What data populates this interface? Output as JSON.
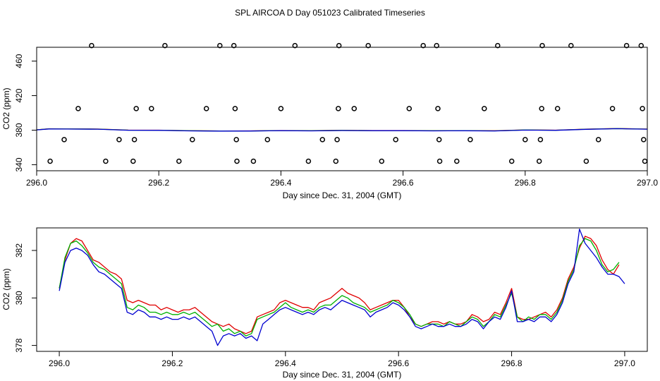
{
  "figure_title": "SPL AIRCOA D  Day 051023  Calibrated Timeseries",
  "chart_data": [
    {
      "type": "line",
      "xlabel": "Day since Dec. 31, 2004 (GMT)",
      "ylabel": "CO2 (ppm)",
      "xlim": [
        296.0,
        297.0
      ],
      "ylim": [
        333,
        476
      ],
      "xticks": [
        "296.0",
        "296.2",
        "296.4",
        "296.6",
        "296.8",
        "297.0"
      ],
      "yticks": [
        "340",
        "380",
        "420",
        "460"
      ],
      "grid": false,
      "points": [
        {
          "name": "calibration-points",
          "marker": "circle",
          "color": "#000000",
          "x": [
            296.022,
            296.045,
            296.068,
            296.09,
            296.113,
            296.135,
            296.158,
            296.16,
            296.163,
            296.188,
            296.21,
            296.233,
            296.255,
            296.278,
            296.3,
            296.323,
            296.325,
            296.327,
            296.328,
            296.355,
            296.378,
            296.4,
            296.423,
            296.445,
            296.468,
            296.49,
            296.492,
            296.494,
            296.495,
            296.52,
            296.543,
            296.565,
            296.588,
            296.61,
            296.633,
            296.655,
            296.657,
            296.659,
            296.66,
            296.688,
            296.71,
            296.733,
            296.755,
            296.778,
            296.8,
            296.823,
            296.825,
            296.827,
            296.828,
            296.853,
            296.875,
            296.9,
            296.92,
            296.943,
            296.966,
            296.99,
            296.992,
            296.994,
            296.996
          ],
          "y": [
            344,
            369,
            405,
            478,
            344,
            369,
            344,
            369,
            405,
            405,
            478,
            344,
            369,
            405,
            478,
            478,
            405,
            369,
            344,
            344,
            369,
            405,
            478,
            344,
            369,
            344,
            369,
            405,
            478,
            405,
            478,
            344,
            369,
            405,
            478,
            478,
            405,
            369,
            344,
            344,
            369,
            405,
            478,
            344,
            369,
            344,
            369,
            405,
            478,
            405,
            478,
            344,
            369,
            405,
            478,
            478,
            405,
            369,
            344
          ]
        }
      ],
      "series": [
        {
          "name": "red",
          "color": "#e00000",
          "x": [
            296.0,
            296.02,
            296.05,
            296.1,
            296.15,
            296.2,
            296.25,
            296.3,
            296.35,
            296.4,
            296.45,
            296.5,
            296.55,
            296.6,
            296.65,
            296.7,
            296.75,
            296.8,
            296.85,
            296.9,
            296.95,
            297.0
          ],
          "y": [
            380.4,
            381.6,
            381.5,
            381.3,
            380.1,
            380.0,
            379.4,
            379.1,
            379.2,
            379.6,
            379.4,
            379.8,
            379.6,
            379.6,
            379.4,
            379.5,
            379.3,
            380.3,
            380.0,
            381.2,
            381.9,
            381.3
          ]
        },
        {
          "name": "green",
          "color": "#00b000",
          "x": [
            296.0,
            296.02,
            296.05,
            296.1,
            296.15,
            296.2,
            296.25,
            296.3,
            296.35,
            296.4,
            296.45,
            296.5,
            296.55,
            296.6,
            296.65,
            296.7,
            296.75,
            296.8,
            296.85,
            296.9,
            296.95,
            297.0
          ],
          "y": [
            380.4,
            381.5,
            381.4,
            381.2,
            380.0,
            379.9,
            379.3,
            379.0,
            379.1,
            379.5,
            379.3,
            379.7,
            379.5,
            379.5,
            379.3,
            379.4,
            379.2,
            380.2,
            379.9,
            381.1,
            381.8,
            381.2
          ]
        },
        {
          "name": "blue",
          "color": "#0000d0",
          "x": [
            296.0,
            296.02,
            296.05,
            296.1,
            296.15,
            296.2,
            296.25,
            296.3,
            296.35,
            296.4,
            296.45,
            296.5,
            296.55,
            296.6,
            296.65,
            296.7,
            296.75,
            296.8,
            296.85,
            296.9,
            296.95,
            297.0
          ],
          "y": [
            380.3,
            381.4,
            381.3,
            381.1,
            379.9,
            379.8,
            379.2,
            378.9,
            379.0,
            379.4,
            379.2,
            379.6,
            379.4,
            379.4,
            379.2,
            379.3,
            379.1,
            380.1,
            379.8,
            381.0,
            381.7,
            381.1
          ]
        }
      ]
    },
    {
      "type": "line",
      "xlabel": "Day since Dec. 31, 2004 (GMT)",
      "ylabel": "CO2 (ppm)",
      "xlim": [
        295.96,
        297.04
      ],
      "ylim": [
        377.75,
        382.95
      ],
      "xticks": [
        "296.0",
        "296.2",
        "296.4",
        "296.6",
        "296.8",
        "297.0"
      ],
      "yticks": [
        "378",
        "380",
        "382"
      ],
      "grid": false,
      "series": [
        {
          "name": "red",
          "color": "#e00000",
          "x": [
            296.0,
            296.01,
            296.02,
            296.03,
            296.04,
            296.05,
            296.06,
            296.07,
            296.08,
            296.09,
            296.1,
            296.11,
            296.12,
            296.13,
            296.14,
            296.15,
            296.16,
            296.17,
            296.18,
            296.19,
            296.2,
            296.21,
            296.22,
            296.23,
            296.24,
            296.25,
            296.26,
            296.27,
            296.28,
            296.29,
            296.3,
            296.31,
            296.32,
            296.33,
            296.34,
            296.35,
            296.36,
            296.37,
            296.38,
            296.39,
            296.4,
            296.41,
            296.42,
            296.43,
            296.44,
            296.45,
            296.46,
            296.47,
            296.48,
            296.49,
            296.5,
            296.51,
            296.52,
            296.53,
            296.54,
            296.55,
            296.56,
            296.57,
            296.58,
            296.59,
            296.6,
            296.61,
            296.62,
            296.63,
            296.64,
            296.65,
            296.66,
            296.67,
            296.68,
            296.69,
            296.7,
            296.71,
            296.72,
            296.73,
            296.74,
            296.75,
            296.76,
            296.77,
            296.78,
            296.79,
            296.8,
            296.81,
            296.82,
            296.83,
            296.84,
            296.85,
            296.86,
            296.87,
            296.88,
            296.89,
            296.9,
            296.91,
            296.92,
            296.93,
            296.94,
            296.95,
            296.96,
            296.97,
            296.98,
            296.99
          ],
          "y": [
            380.4,
            381.6,
            382.3,
            382.5,
            382.4,
            382.0,
            381.6,
            381.5,
            381.3,
            381.1,
            381.0,
            380.8,
            379.9,
            379.8,
            379.9,
            379.8,
            379.7,
            379.7,
            379.5,
            379.6,
            379.5,
            379.4,
            379.5,
            379.5,
            379.6,
            379.4,
            379.2,
            379.0,
            378.9,
            378.8,
            378.9,
            378.7,
            378.6,
            378.5,
            378.6,
            379.2,
            379.3,
            379.4,
            379.5,
            379.8,
            379.9,
            379.8,
            379.7,
            379.6,
            379.6,
            379.5,
            379.8,
            379.9,
            380.0,
            380.2,
            380.4,
            380.2,
            380.1,
            380.0,
            379.8,
            379.5,
            379.6,
            379.7,
            379.8,
            379.9,
            379.9,
            379.6,
            379.2,
            378.9,
            378.8,
            378.9,
            379.0,
            379.0,
            378.9,
            379.0,
            378.9,
            378.9,
            379.0,
            379.3,
            379.2,
            379.0,
            379.1,
            379.4,
            379.3,
            379.8,
            380.4,
            379.2,
            379.1,
            379.1,
            379.2,
            379.3,
            379.4,
            379.2,
            379.5,
            380.0,
            380.8,
            381.3,
            382.1,
            382.6,
            382.5,
            382.2,
            381.6,
            381.2,
            381.0,
            381.4
          ]
        },
        {
          "name": "green",
          "color": "#00b000",
          "x": [
            296.0,
            296.01,
            296.02,
            296.03,
            296.04,
            296.05,
            296.06,
            296.07,
            296.08,
            296.09,
            296.1,
            296.11,
            296.12,
            296.13,
            296.14,
            296.15,
            296.16,
            296.17,
            296.18,
            296.19,
            296.2,
            296.21,
            296.22,
            296.23,
            296.24,
            296.25,
            296.26,
            296.27,
            296.28,
            296.29,
            296.3,
            296.31,
            296.32,
            296.33,
            296.34,
            296.35,
            296.36,
            296.37,
            296.38,
            296.39,
            296.4,
            296.41,
            296.42,
            296.43,
            296.44,
            296.45,
            296.46,
            296.47,
            296.48,
            296.49,
            296.5,
            296.51,
            296.52,
            296.53,
            296.54,
            296.55,
            296.56,
            296.57,
            296.58,
            296.59,
            296.6,
            296.61,
            296.62,
            296.63,
            296.64,
            296.65,
            296.66,
            296.67,
            296.68,
            296.69,
            296.7,
            296.71,
            296.72,
            296.73,
            296.74,
            296.75,
            296.76,
            296.77,
            296.78,
            296.79,
            296.8,
            296.81,
            296.82,
            296.83,
            296.84,
            296.85,
            296.86,
            296.87,
            296.88,
            296.89,
            296.9,
            296.91,
            296.92,
            296.93,
            296.94,
            296.95,
            296.96,
            296.97,
            296.98,
            296.99
          ],
          "y": [
            380.4,
            381.7,
            382.3,
            382.4,
            382.2,
            381.9,
            381.5,
            381.3,
            381.2,
            381.0,
            380.8,
            380.6,
            379.6,
            379.5,
            379.7,
            379.6,
            379.4,
            379.4,
            379.3,
            379.4,
            379.3,
            379.3,
            379.4,
            379.3,
            379.4,
            379.2,
            379.0,
            378.8,
            378.9,
            378.6,
            378.7,
            378.5,
            378.6,
            378.4,
            378.5,
            379.1,
            379.2,
            379.3,
            379.4,
            379.6,
            379.8,
            379.6,
            379.5,
            379.4,
            379.5,
            379.4,
            379.6,
            379.7,
            379.7,
            379.9,
            380.1,
            380.0,
            379.8,
            379.7,
            379.6,
            379.4,
            379.5,
            379.6,
            379.7,
            379.9,
            379.8,
            379.6,
            379.3,
            378.9,
            378.8,
            378.9,
            378.9,
            378.9,
            378.8,
            379.0,
            378.9,
            378.8,
            379.0,
            379.2,
            379.1,
            378.8,
            379.0,
            379.3,
            379.2,
            379.7,
            380.2,
            379.2,
            379.0,
            379.2,
            379.1,
            379.3,
            379.3,
            379.1,
            379.4,
            379.9,
            380.7,
            381.2,
            382.2,
            382.5,
            382.4,
            382.0,
            381.4,
            381.1,
            381.2,
            381.5
          ]
        },
        {
          "name": "blue",
          "color": "#0000d0",
          "x": [
            296.0,
            296.01,
            296.02,
            296.03,
            296.04,
            296.05,
            296.06,
            296.07,
            296.08,
            296.09,
            296.1,
            296.11,
            296.12,
            296.13,
            296.14,
            296.15,
            296.16,
            296.17,
            296.18,
            296.19,
            296.2,
            296.21,
            296.22,
            296.23,
            296.24,
            296.25,
            296.26,
            296.27,
            296.28,
            296.29,
            296.3,
            296.31,
            296.32,
            296.33,
            296.34,
            296.35,
            296.36,
            296.37,
            296.38,
            296.39,
            296.4,
            296.41,
            296.42,
            296.43,
            296.44,
            296.45,
            296.46,
            296.47,
            296.48,
            296.49,
            296.5,
            296.51,
            296.52,
            296.53,
            296.54,
            296.55,
            296.56,
            296.57,
            296.58,
            296.59,
            296.6,
            296.61,
            296.62,
            296.63,
            296.64,
            296.65,
            296.66,
            296.67,
            296.68,
            296.69,
            296.7,
            296.71,
            296.72,
            296.73,
            296.74,
            296.75,
            296.76,
            296.77,
            296.78,
            296.79,
            296.8,
            296.81,
            296.82,
            296.83,
            296.84,
            296.85,
            296.86,
            296.87,
            296.88,
            296.89,
            296.9,
            296.91,
            296.92,
            296.93,
            296.94,
            296.95,
            296.96,
            296.97,
            296.98,
            296.99,
            297.0
          ],
          "y": [
            380.3,
            381.5,
            382.0,
            382.1,
            382.0,
            381.8,
            381.4,
            381.1,
            381.0,
            380.8,
            380.6,
            380.4,
            379.4,
            379.3,
            379.5,
            379.4,
            379.2,
            379.2,
            379.1,
            379.2,
            379.1,
            379.1,
            379.2,
            379.1,
            379.2,
            379.0,
            378.8,
            378.6,
            378.0,
            378.4,
            378.5,
            378.4,
            378.5,
            378.3,
            378.4,
            378.2,
            378.9,
            379.1,
            379.3,
            379.5,
            379.6,
            379.5,
            379.4,
            379.3,
            379.4,
            379.3,
            379.5,
            379.6,
            379.5,
            379.7,
            379.9,
            379.8,
            379.7,
            379.6,
            379.5,
            379.2,
            379.4,
            379.5,
            379.6,
            379.8,
            379.7,
            379.5,
            379.2,
            378.8,
            378.7,
            378.8,
            378.9,
            378.8,
            378.8,
            378.9,
            378.8,
            378.8,
            378.9,
            379.1,
            379.0,
            378.7,
            379.0,
            379.2,
            379.1,
            379.6,
            380.3,
            379.0,
            379.0,
            379.1,
            379.0,
            379.2,
            379.2,
            379.0,
            379.3,
            379.8,
            380.6,
            381.1,
            382.9,
            382.3,
            382.0,
            381.7,
            381.3,
            381.0,
            381.0,
            380.9,
            380.6
          ]
        }
      ]
    }
  ]
}
